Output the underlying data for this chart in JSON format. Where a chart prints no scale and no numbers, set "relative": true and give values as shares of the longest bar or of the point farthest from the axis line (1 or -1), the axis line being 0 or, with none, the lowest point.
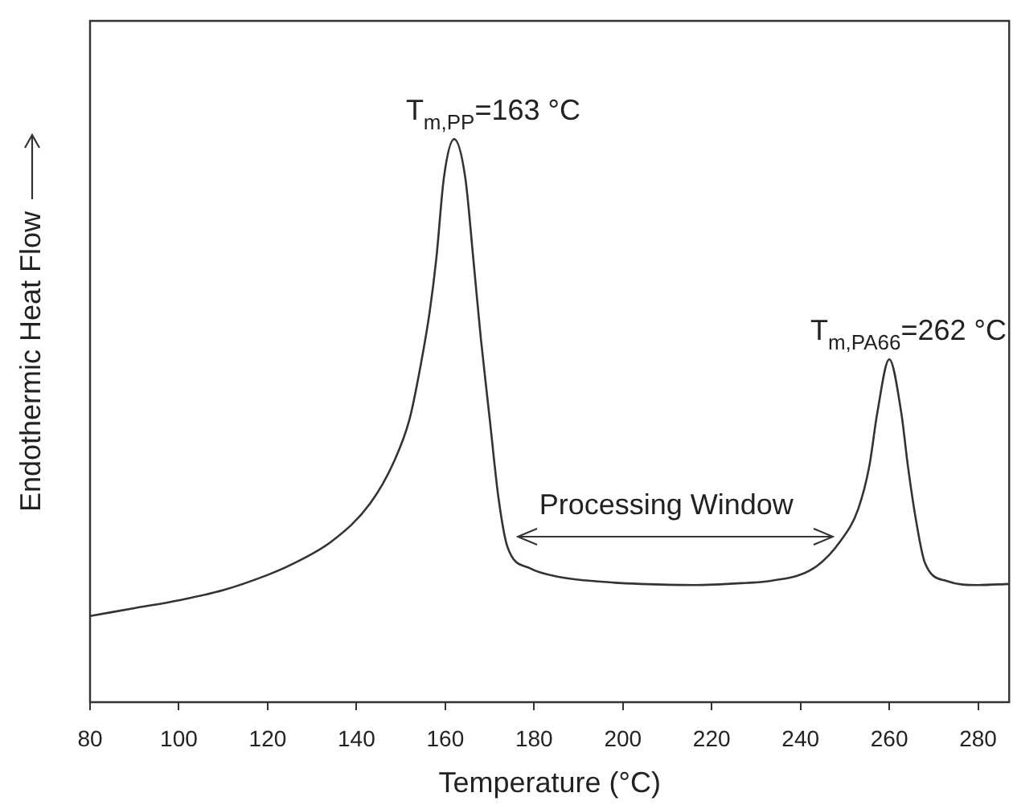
{
  "chart_data": {
    "type": "line",
    "xlabel": "Temperature (°C)",
    "ylabel": "Endothermic Heat Flow",
    "relative": true,
    "color": "#333333",
    "xlim": [
      80,
      287
    ],
    "xticks": [
      80,
      100,
      120,
      140,
      160,
      180,
      200,
      220,
      240,
      260,
      280
    ],
    "x": [
      80,
      90,
      100,
      110,
      120,
      125,
      134.5,
      143,
      148.5,
      152,
      154.5,
      156.5,
      158,
      159.7,
      162,
      164.5,
      166.3,
      168,
      170,
      172,
      174,
      179,
      186,
      195,
      204,
      216,
      228,
      233,
      243,
      249,
      253,
      255.5,
      257.3,
      260,
      262.7,
      264.2,
      266,
      268,
      273,
      280,
      287
    ],
    "values": [
      0.153,
      0.167,
      0.181,
      0.199,
      0.226,
      0.243,
      0.286,
      0.352,
      0.428,
      0.504,
      0.6,
      0.694,
      0.789,
      0.932,
      1,
      0.932,
      0.789,
      0.647,
      0.504,
      0.362,
      0.276,
      0.238,
      0.222,
      0.214,
      0.21,
      0.208,
      0.212,
      0.215,
      0.238,
      0.286,
      0.343,
      0.419,
      0.514,
      0.609,
      0.514,
      0.419,
      0.324,
      0.248,
      0.215,
      0.208,
      0.21
    ],
    "annotations": [
      {
        "text": "T$_{m,PP}$=163 °C",
        "x": 162,
        "y": 1
      },
      {
        "text": "T$_{m,PA66}$=262 °C",
        "x": 260,
        "y": 0.609
      },
      "Processing Window"
    ]
  }
}
